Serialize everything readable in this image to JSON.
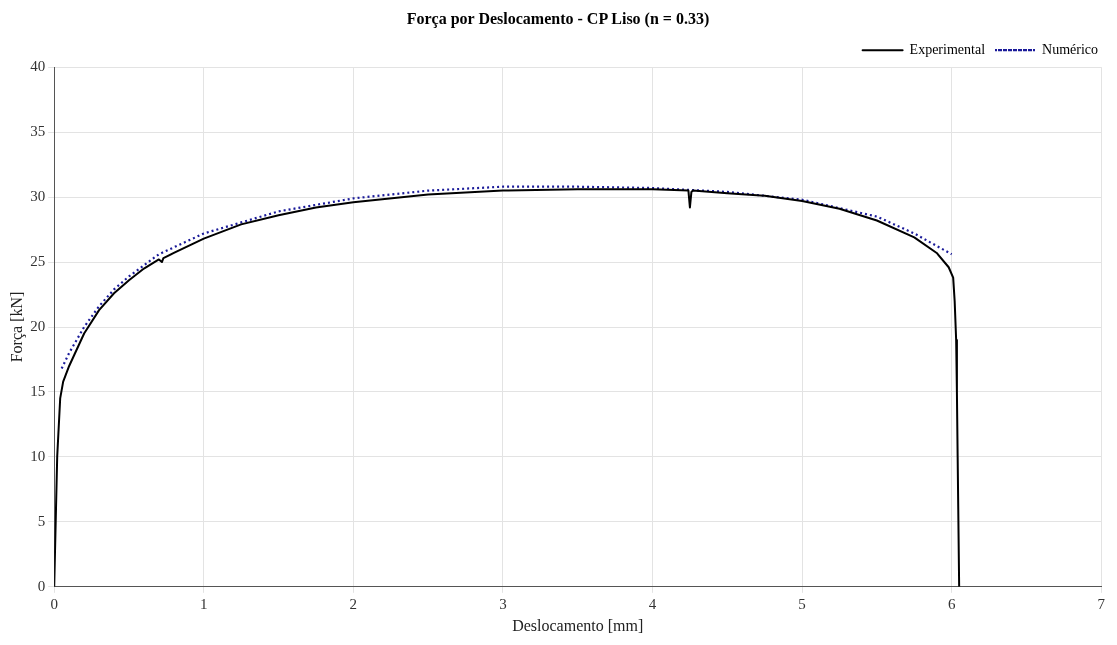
{
  "chart_data": {
    "type": "line",
    "title": "Força por Deslocamento - CP Liso (n = 0.33)",
    "xlabel": "Deslocamento [mm]",
    "ylabel": "Força [kN]",
    "xlim": [
      0,
      7
    ],
    "xticks": [
      0,
      1,
      2,
      3,
      4,
      5,
      6,
      7
    ],
    "ylim": [
      0,
      40
    ],
    "yticks": [
      0,
      5,
      10,
      15,
      20,
      25,
      30,
      35,
      40
    ],
    "grid": true,
    "legend": "top right",
    "marker": "none",
    "series": [
      {
        "name": "Experimental",
        "color": "#000000",
        "line_style": "solid",
        "x": [
          0,
          0.02,
          0.04,
          0.06,
          0.1,
          0.2,
          0.3,
          0.4,
          0.5,
          0.6,
          0.7,
          0.72,
          0.73,
          0.8,
          1,
          1.25,
          1.5,
          1.75,
          2,
          2.5,
          3,
          3.5,
          4,
          4.24,
          4.25,
          4.26,
          4.27,
          4.5,
          4.75,
          5,
          5.25,
          5.5,
          5.75,
          5.9,
          5.98,
          6.01,
          6.02,
          6.03,
          6.035,
          6.04,
          6.045,
          6.05
        ],
        "values": [
          0,
          10,
          14.5,
          15.8,
          17,
          19.5,
          21.3,
          22.6,
          23.6,
          24.5,
          25.2,
          25,
          25.3,
          25.7,
          26.8,
          27.9,
          28.6,
          29.2,
          29.6,
          30.2,
          30.5,
          30.6,
          30.6,
          30.5,
          29.2,
          30.4,
          30.5,
          30.3,
          30.1,
          29.7,
          29.1,
          28.2,
          26.9,
          25.7,
          24.6,
          23.8,
          22,
          19,
          15,
          10,
          5,
          0
        ]
      },
      {
        "name": "Numérico",
        "color": "#1a1a99",
        "line_style": "dotted",
        "x": [
          0.05,
          0.1,
          0.2,
          0.3,
          0.4,
          0.5,
          0.7,
          1,
          1.5,
          2,
          2.5,
          3,
          3.5,
          4,
          4.5,
          5,
          5.5,
          5.75,
          6
        ],
        "values": [
          16.8,
          18,
          20,
          21.6,
          22.9,
          23.9,
          25.6,
          27.2,
          28.9,
          29.9,
          30.5,
          30.8,
          30.8,
          30.7,
          30.4,
          29.8,
          28.5,
          27.2,
          25.6
        ]
      }
    ]
  }
}
